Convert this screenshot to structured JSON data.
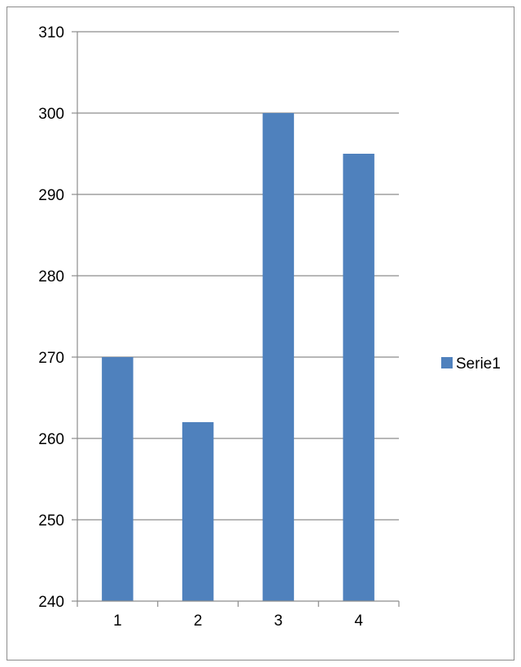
{
  "chart_data": {
    "type": "bar",
    "categories": [
      "1",
      "2",
      "3",
      "4"
    ],
    "series": [
      {
        "name": "Serie1",
        "values": [
          270,
          262,
          300,
          295
        ],
        "color": "#4f81bd"
      }
    ],
    "ylim": [
      240,
      310
    ],
    "yticks": [
      240,
      250,
      260,
      270,
      280,
      290,
      300,
      310
    ],
    "title": "",
    "xlabel": "",
    "ylabel": "",
    "grid": true,
    "legend_position": "right",
    "colors": {
      "gridline": "#8c8c8c",
      "axis": "#8c8c8c",
      "frame": "#8c8c8c"
    }
  }
}
